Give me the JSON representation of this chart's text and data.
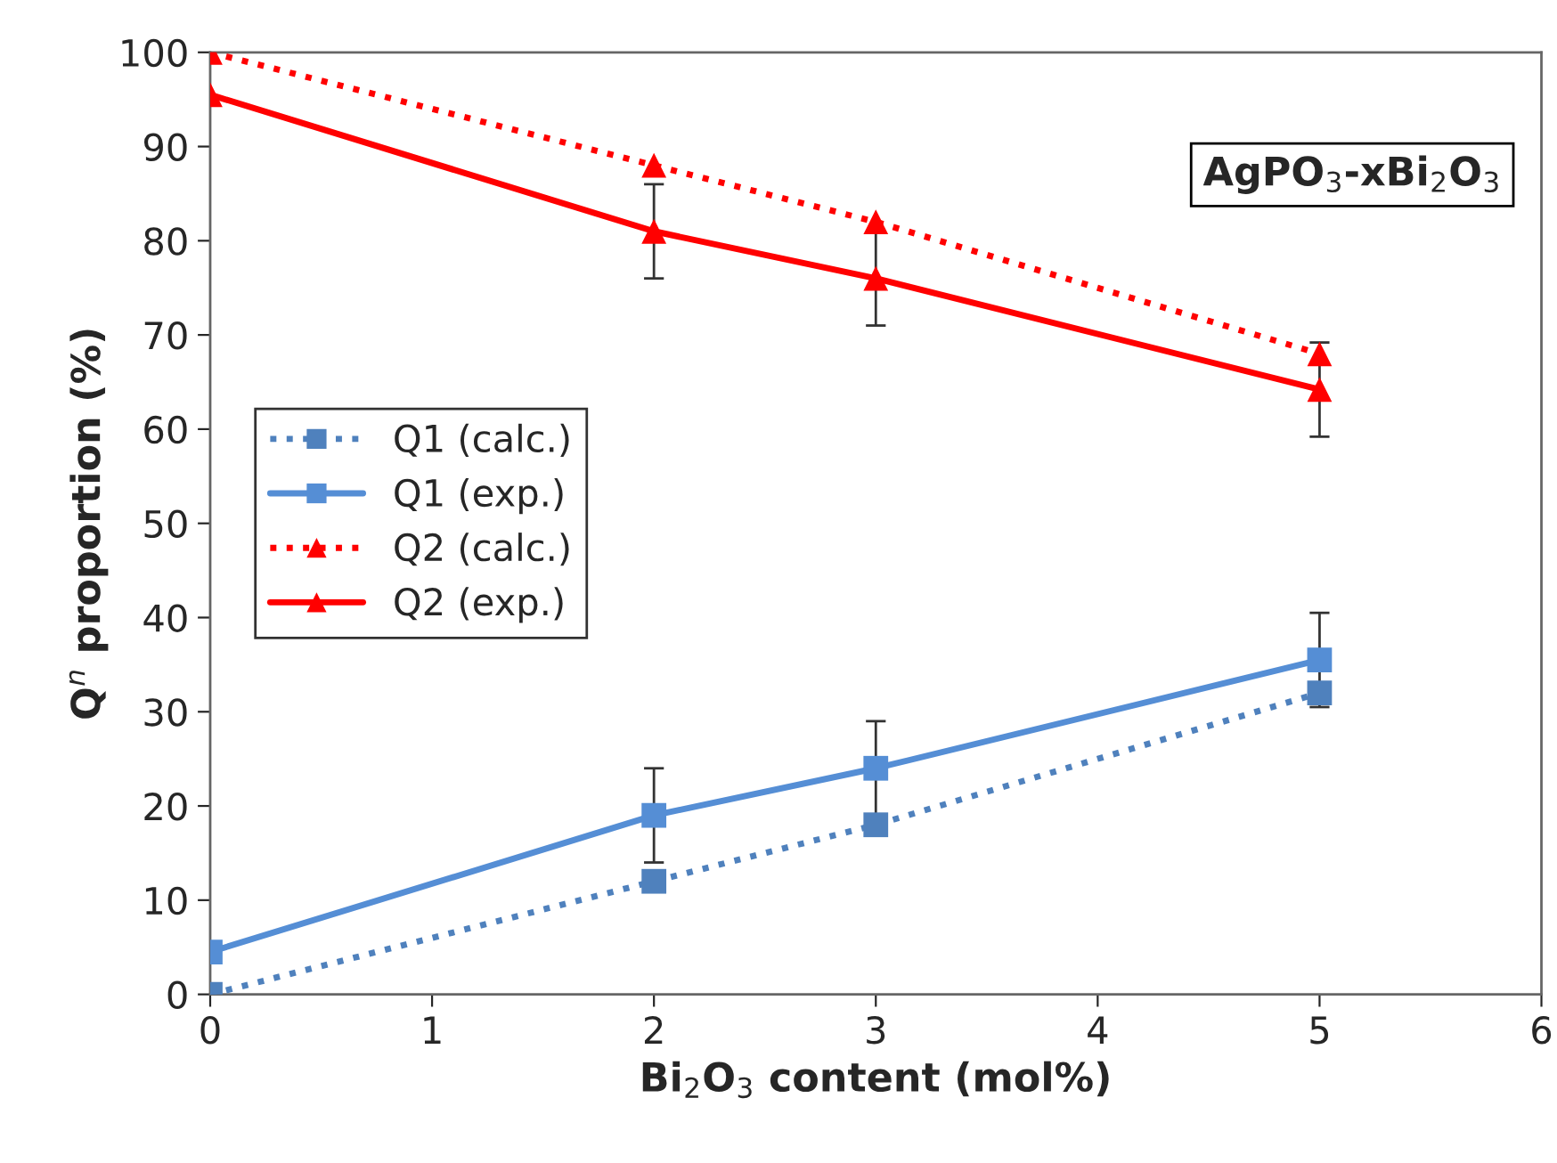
{
  "chart_data": {
    "type": "line",
    "xlabel": "Bi$_{2}$O$_{3}$ content (mol%)",
    "ylabel": "Q$^{n}$ proportion (%)",
    "annotations": [
      "AgPO$_{3}$-xBi$_{2}$O$_{3}$"
    ],
    "x": [
      0,
      2,
      3,
      5
    ],
    "series": [
      {
        "name": "Q1 (calc.)",
        "color": "#4f81bd",
        "values": [
          0,
          12,
          18,
          32
        ],
        "marker": "square",
        "line_style": "dotted"
      },
      {
        "name": "Q1 (exp.)",
        "color": "#558ed5",
        "values": [
          4.5,
          19,
          24,
          35.5
        ],
        "errors": [
          null,
          5,
          5,
          5
        ],
        "marker": "square",
        "line_style": "solid"
      },
      {
        "name": "Q2 (calc.)",
        "color": "#ff0000",
        "values": [
          100,
          88,
          82,
          68
        ],
        "marker": "triangle",
        "line_style": "dotted"
      },
      {
        "name": "Q2 (exp.)",
        "color": "#ff0000",
        "values": [
          95.5,
          81,
          76,
          64.2
        ],
        "errors": [
          null,
          5,
          5,
          5
        ],
        "marker": "triangle",
        "line_style": "solid"
      }
    ],
    "xlim": [
      0,
      6
    ],
    "xticks": [
      0,
      1,
      2,
      3,
      4,
      5,
      6
    ],
    "ylim": [
      0,
      100
    ],
    "yticks": [
      0,
      10,
      20,
      30,
      40,
      50,
      60,
      70,
      80,
      90,
      100
    ],
    "grid": false,
    "legend": "left"
  }
}
